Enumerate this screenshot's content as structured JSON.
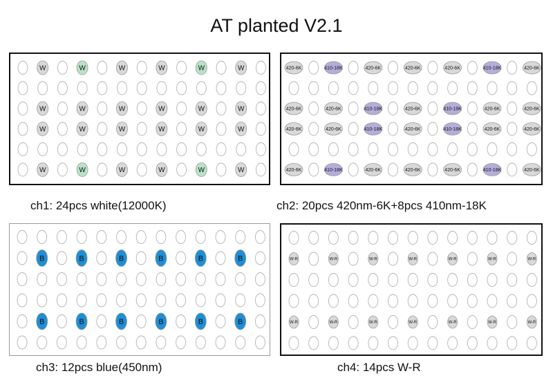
{
  "title": "AT planted V2.1",
  "panels": [
    {
      "id": "ch1",
      "caption": "ch1: 24pcs white(12000K)",
      "led_types": {
        "W": {
          "label": "W",
          "fill": "#d9d9d9"
        },
        "G": {
          "label": "W",
          "fill": "#b9e3c8"
        }
      },
      "rows": [
        [
          "",
          "W",
          "",
          "G",
          "",
          "W",
          "",
          "W",
          "",
          "G",
          "",
          "W",
          ""
        ],
        [
          "",
          "",
          "",
          "",
          "",
          "",
          "",
          "",
          "",
          "",
          "",
          "",
          ""
        ],
        [
          "",
          "W",
          "",
          "W",
          "",
          "W",
          "",
          "W",
          "",
          "W",
          "",
          "W",
          ""
        ],
        [
          "",
          "W",
          "",
          "W",
          "",
          "W",
          "",
          "W",
          "",
          "W",
          "",
          "W",
          ""
        ],
        [
          "",
          "",
          "",
          "",
          "",
          "",
          "",
          "",
          "",
          "",
          "",
          "",
          ""
        ],
        [
          "",
          "W",
          "",
          "G",
          "",
          "W",
          "",
          "W",
          "",
          "G",
          "",
          "W",
          ""
        ]
      ]
    },
    {
      "id": "ch2",
      "caption": "ch2: 20pcs 420nm-6K+8pcs 410nm-18K",
      "led_types": {
        "A": {
          "label": "420-6K",
          "fill": "#d9d9d9"
        },
        "V": {
          "label": "410-18K",
          "fill": "#b4aedb"
        }
      },
      "rows": [
        [
          "A",
          "",
          "V",
          "",
          "A",
          "",
          "A",
          "",
          "A",
          "",
          "V",
          "",
          "A"
        ],
        [
          "",
          "",
          "",
          "",
          "",
          "",
          "",
          "",
          "",
          "",
          "",
          "",
          ""
        ],
        [
          "A",
          "",
          "A",
          "",
          "V",
          "",
          "A",
          "",
          "V",
          "",
          "A",
          "",
          "A"
        ],
        [
          "A",
          "",
          "A",
          "",
          "V",
          "",
          "A",
          "",
          "V",
          "",
          "A",
          "",
          "A"
        ],
        [
          "",
          "",
          "",
          "",
          "",
          "",
          "",
          "",
          "",
          "",
          "",
          "",
          ""
        ],
        [
          "A",
          "",
          "V",
          "",
          "A",
          "",
          "A",
          "",
          "A",
          "",
          "V",
          "",
          "A"
        ]
      ]
    },
    {
      "id": "ch3",
      "caption": "ch3: 12pcs blue(450nm)",
      "led_types": {
        "B": {
          "label": "B",
          "fill": "#1e8fd6"
        }
      },
      "rows": [
        [
          "",
          "",
          "",
          "",
          "",
          "",
          "",
          "",
          "",
          "",
          "",
          "",
          ""
        ],
        [
          "",
          "B",
          "",
          "B",
          "",
          "B",
          "",
          "B",
          "",
          "B",
          "",
          "B",
          ""
        ],
        [
          "",
          "",
          "",
          "",
          "",
          "",
          "",
          "",
          "",
          "",
          "",
          "",
          ""
        ],
        [
          "",
          "",
          "",
          "",
          "",
          "",
          "",
          "",
          "",
          "",
          "",
          "",
          ""
        ],
        [
          "",
          "B",
          "",
          "B",
          "",
          "B",
          "",
          "B",
          "",
          "B",
          "",
          "B",
          ""
        ],
        [
          "",
          "",
          "",
          "",
          "",
          "",
          "",
          "",
          "",
          "",
          "",
          "",
          ""
        ]
      ]
    },
    {
      "id": "ch4",
      "caption": "ch4: 14pcs W-R",
      "led_types": {
        "R": {
          "label": "W-R",
          "fill": "#d9d9d9"
        }
      },
      "rows": [
        [
          "",
          "",
          "",
          "",
          "",
          "",
          "",
          "",
          "",
          "",
          "",
          "",
          ""
        ],
        [
          "R",
          "",
          "R",
          "",
          "R",
          "",
          "R",
          "",
          "R",
          "",
          "R",
          "",
          "R"
        ],
        [
          "",
          "",
          "",
          "",
          "",
          "",
          "",
          "",
          "",
          "",
          "",
          "",
          ""
        ],
        [
          "",
          "",
          "",
          "",
          "",
          "",
          "",
          "",
          "",
          "",
          "",
          "",
          ""
        ],
        [
          "R",
          "",
          "R",
          "",
          "R",
          "",
          "R",
          "",
          "R",
          "",
          "R",
          "",
          "R"
        ],
        [
          "",
          "",
          "",
          "",
          "",
          "",
          "",
          "",
          "",
          "",
          "",
          "",
          ""
        ]
      ]
    }
  ]
}
